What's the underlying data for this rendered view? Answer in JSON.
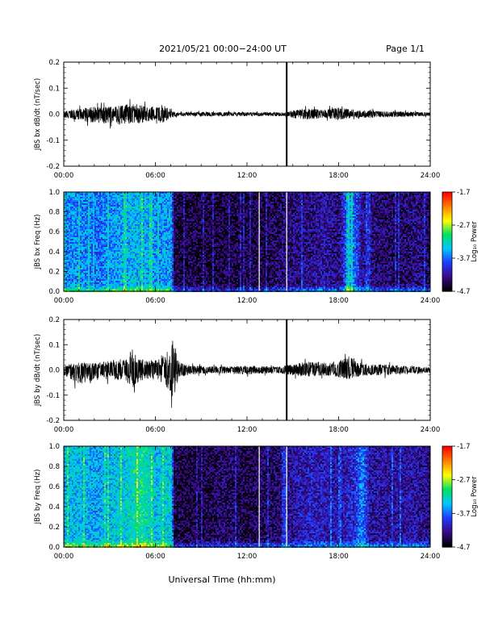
{
  "header": {
    "title": "2021/05/21  00:00−24:00 UT",
    "page": "Page 1/1"
  },
  "footer": {
    "xlabel": "Universal Time (hh:mm)"
  },
  "colors": {
    "trace": "#000000",
    "spectrogram_low": "#1a0a5c",
    "colormap": [
      "#000000",
      "#3a0a8a",
      "#1e3cff",
      "#00c8ff",
      "#00e060",
      "#ffff00",
      "#ff8000",
      "#ff0000"
    ]
  },
  "chart_data": [
    {
      "type": "line",
      "ylabel": "JBS bx dB/dt (nT/sec)",
      "xlim": [
        0,
        24
      ],
      "ylim": [
        -0.2,
        0.2
      ],
      "xticks": [
        "00:00",
        "06:00",
        "12:00",
        "18:00",
        "24:00"
      ],
      "yticks": [
        "-0.2",
        "-0.1",
        "0.0",
        "0.1",
        "0.2"
      ],
      "envelope": {
        "x": [
          0,
          1,
          2,
          3,
          4,
          4.5,
          5,
          5.5,
          6,
          6.5,
          7,
          7.5,
          8,
          9,
          10,
          11,
          12,
          13,
          14,
          14.5,
          15,
          16,
          17,
          18,
          19,
          20,
          21,
          22,
          23,
          24
        ],
        "upper": [
          0.02,
          0.03,
          0.04,
          0.04,
          0.05,
          0.06,
          0.05,
          0.04,
          0.04,
          0.05,
          0.02,
          0.01,
          0.01,
          0.012,
          0.01,
          0.012,
          0.01,
          0.01,
          0.01,
          0.01,
          0.02,
          0.03,
          0.025,
          0.035,
          0.025,
          0.02,
          0.015,
          0.015,
          0.012,
          0.01
        ],
        "lower": [
          -0.02,
          -0.03,
          -0.05,
          -0.05,
          -0.06,
          -0.05,
          -0.05,
          -0.04,
          -0.03,
          -0.05,
          -0.02,
          -0.01,
          -0.01,
          -0.012,
          -0.01,
          -0.012,
          -0.01,
          -0.01,
          -0.01,
          -0.01,
          -0.02,
          -0.03,
          -0.02,
          -0.03,
          -0.02,
          -0.02,
          -0.015,
          -0.015,
          -0.012,
          -0.01
        ]
      },
      "gap_line_x": 14.6
    },
    {
      "type": "heatmap",
      "ylabel": "JBS bx Freq (Hz)",
      "xlim": [
        0,
        24
      ],
      "ylim": [
        0.0,
        1.0
      ],
      "xticks": [
        "00:00",
        "06:00",
        "12:00",
        "18:00",
        "24:00"
      ],
      "yticks": [
        "0.0",
        "0.2",
        "0.4",
        "0.6",
        "0.8",
        "1.0"
      ],
      "colorbar": {
        "label": "Log₁₀ Power",
        "ticks": [
          "-1.7",
          "-2.7",
          "-3.7",
          "-4.7"
        ],
        "range": [
          -4.7,
          -1.7
        ]
      },
      "white_lines_x": [
        12.8,
        14.6
      ],
      "intensity_profile": {
        "x": [
          0,
          1,
          2,
          3,
          4,
          5,
          6,
          7,
          7.2,
          8,
          9,
          10,
          11,
          12,
          13,
          14,
          15,
          16,
          17,
          18,
          18.7,
          19.5,
          20,
          21,
          22,
          23,
          24
        ],
        "level": [
          -3.6,
          -3.6,
          -3.7,
          -3.6,
          -3.5,
          -3.4,
          -3.6,
          -3.5,
          -4.5,
          -4.5,
          -4.5,
          -4.5,
          -4.5,
          -4.5,
          -4.5,
          -4.4,
          -4.3,
          -4.3,
          -4.2,
          -4.3,
          -3.5,
          -4.2,
          -4.3,
          -4.4,
          -4.4,
          -4.3,
          -4.4
        ]
      }
    },
    {
      "type": "line",
      "ylabel": "JBS by dB/dt (nT/sec)",
      "xlim": [
        0,
        24
      ],
      "ylim": [
        -0.2,
        0.2
      ],
      "xticks": [
        "00:00",
        "06:00",
        "12:00",
        "18:00",
        "24:00"
      ],
      "yticks": [
        "-0.2",
        "-0.1",
        "0.0",
        "0.1",
        "0.2"
      ],
      "envelope": {
        "x": [
          0,
          1,
          2,
          3,
          4,
          4.5,
          5,
          5.5,
          6,
          6.5,
          7,
          7.2,
          7.5,
          8,
          9,
          10,
          11,
          12,
          13,
          14,
          15,
          16,
          17,
          18,
          18.8,
          19,
          20,
          21,
          22,
          23,
          24
        ],
        "upper": [
          0.03,
          0.04,
          0.04,
          0.05,
          0.07,
          0.12,
          0.06,
          0.05,
          0.06,
          0.08,
          0.14,
          0.18,
          0.05,
          0.03,
          0.02,
          0.02,
          0.02,
          0.025,
          0.02,
          0.02,
          0.03,
          0.05,
          0.04,
          0.05,
          0.08,
          0.05,
          0.03,
          0.03,
          0.025,
          0.02,
          0.015
        ],
        "lower": [
          -0.03,
          -0.08,
          -0.06,
          -0.05,
          -0.07,
          -0.09,
          -0.06,
          -0.05,
          -0.06,
          -0.07,
          -0.12,
          -0.17,
          -0.05,
          -0.03,
          -0.02,
          -0.02,
          -0.02,
          -0.025,
          -0.02,
          -0.02,
          -0.03,
          -0.04,
          -0.03,
          -0.04,
          -0.06,
          -0.04,
          -0.03,
          -0.03,
          -0.025,
          -0.02,
          -0.015
        ]
      },
      "gap_line_x": 14.6
    },
    {
      "type": "heatmap",
      "ylabel": "JBS by Freq (Hz)",
      "xlim": [
        0,
        24
      ],
      "ylim": [
        0.0,
        1.0
      ],
      "xticks": [
        "00:00",
        "06:00",
        "12:00",
        "18:00",
        "24:00"
      ],
      "yticks": [
        "0.0",
        "0.2",
        "0.4",
        "0.6",
        "0.8",
        "1.0"
      ],
      "colorbar": {
        "label": "Log₁₀ Power",
        "ticks": [
          "-1.7",
          "-2.7",
          "-3.7",
          "-4.7"
        ],
        "range": [
          -4.7,
          -1.7
        ]
      },
      "white_lines_x": [
        12.8,
        14.6
      ],
      "intensity_profile": {
        "x": [
          0,
          1,
          2,
          3,
          4,
          5,
          6,
          7,
          7.2,
          8,
          9,
          10,
          11,
          12,
          13,
          14,
          15,
          16,
          17,
          18,
          19,
          19.5,
          20,
          21,
          22,
          23,
          24
        ],
        "level": [
          -3.4,
          -3.4,
          -3.5,
          -3.4,
          -3.3,
          -3.1,
          -3.4,
          -3.3,
          -4.5,
          -4.5,
          -4.5,
          -4.4,
          -4.4,
          -4.5,
          -4.4,
          -4.4,
          -4.2,
          -4.1,
          -4.1,
          -4.2,
          -4.0,
          -3.6,
          -4.2,
          -4.2,
          -4.2,
          -4.2,
          -4.3
        ]
      }
    }
  ]
}
